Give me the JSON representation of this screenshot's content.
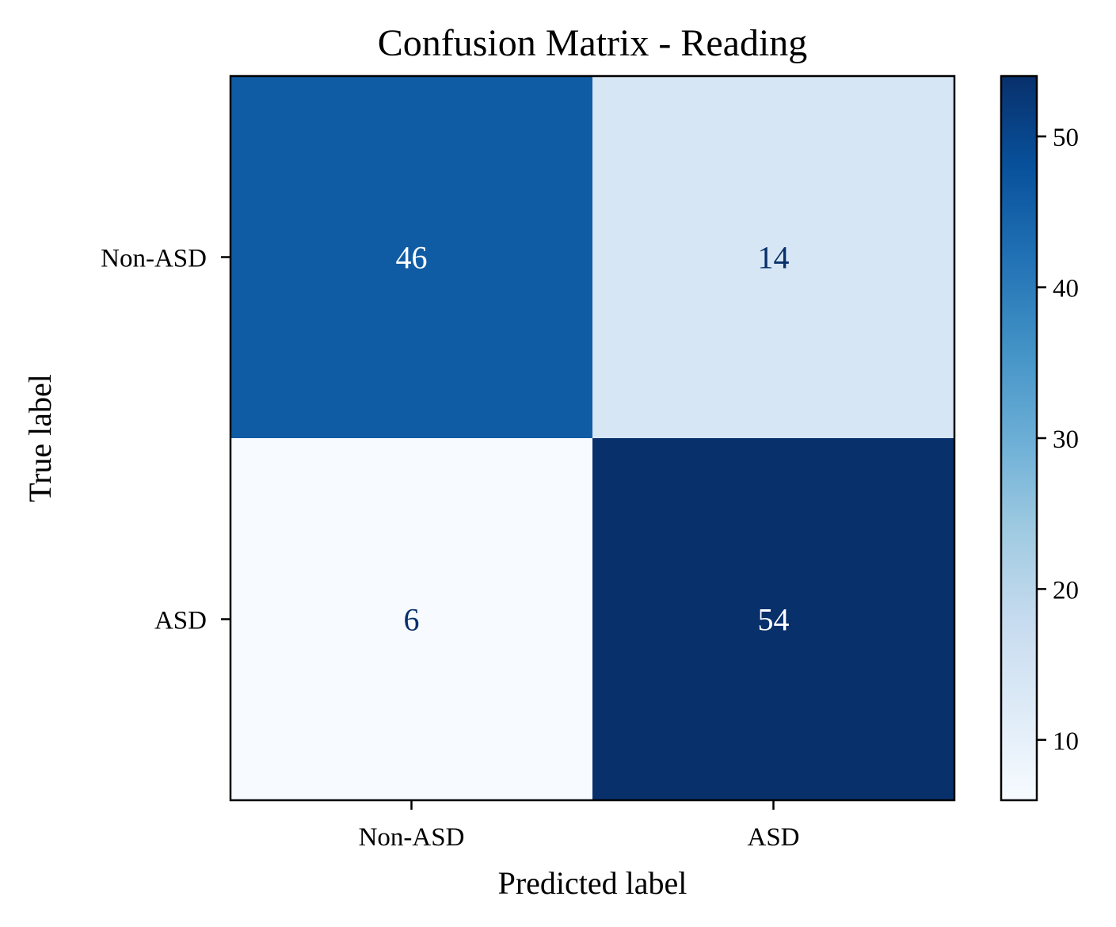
{
  "chart_data": {
    "type": "heatmap",
    "title": "Confusion Matrix - Reading",
    "xlabel": "Predicted label",
    "ylabel": "True label",
    "x_categories": [
      "Non-ASD",
      "ASD"
    ],
    "y_categories": [
      "Non-ASD",
      "ASD"
    ],
    "values": [
      [
        46,
        14
      ],
      [
        6,
        54
      ]
    ],
    "colormap": "Blues",
    "colorbar": {
      "range": [
        6,
        54
      ],
      "ticks": [
        10,
        20,
        30,
        40,
        50
      ],
      "tick_labels": [
        "10",
        "20",
        "30",
        "40",
        "50"
      ]
    },
    "grid": false
  }
}
